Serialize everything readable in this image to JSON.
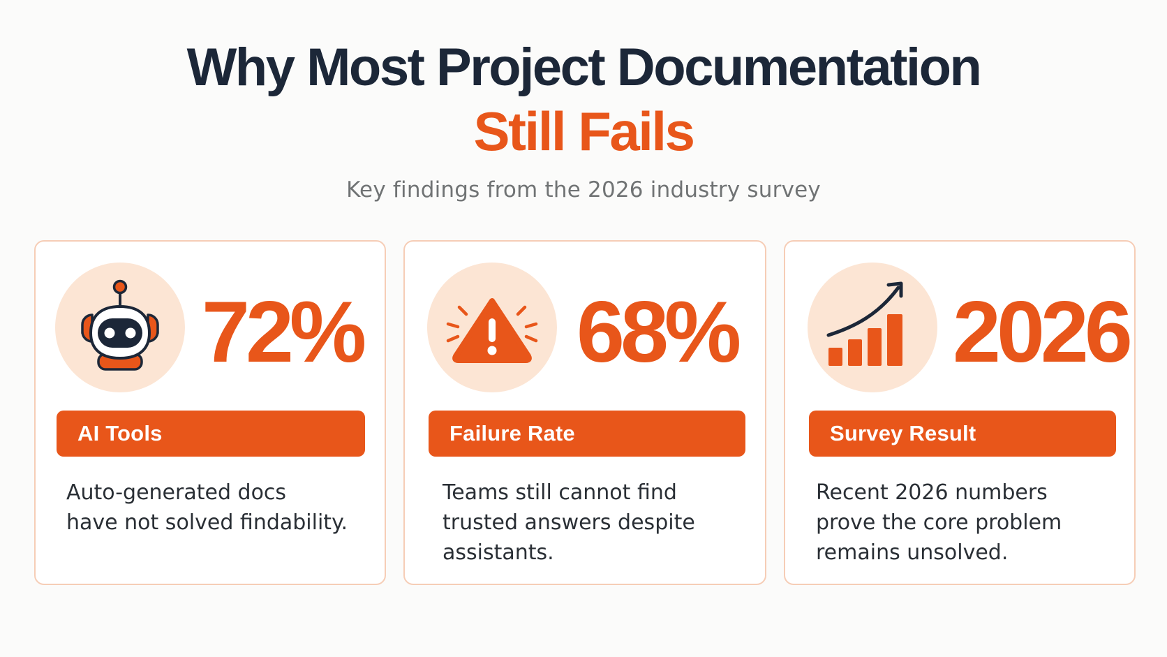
{
  "header": {
    "title_line1": "Why Most Project Documentation",
    "title_line2": "Still Fails",
    "subtitle": "Key findings from the 2026 industry survey"
  },
  "colors": {
    "accent": "#e8561a",
    "title_dark": "#1c2738",
    "icon_bg": "#fce5d4",
    "card_border": "#f6cdb6"
  },
  "cards": [
    {
      "icon": "robot-icon",
      "stat": "72%",
      "label": "AI Tools",
      "description_lines": [
        "Auto-generated docs",
        "have not solved findability."
      ]
    },
    {
      "icon": "warning-icon",
      "stat": "68%",
      "label": "Failure Rate",
      "description_lines": [
        "Teams still cannot find",
        "trusted answers despite",
        "assistants."
      ]
    },
    {
      "icon": "growth-chart-icon",
      "stat": "2026",
      "label": "Survey Result",
      "description_lines": [
        "Recent 2026 numbers",
        "prove the core problem",
        "remains unsolved."
      ]
    }
  ]
}
